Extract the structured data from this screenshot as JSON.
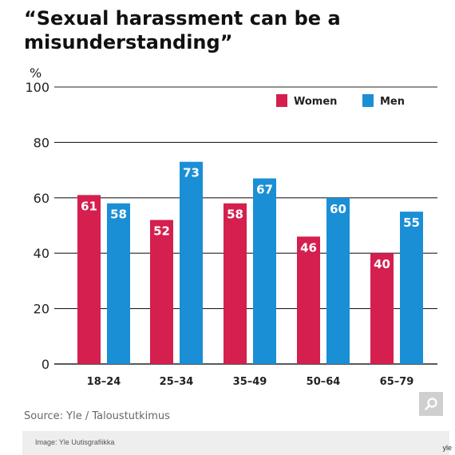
{
  "chart_data": {
    "type": "bar",
    "title": "“Sexual harassment can be a misunderstanding”",
    "ylabel": "%",
    "xlabel": "",
    "categories": [
      "18–24",
      "25–34",
      "35–49",
      "50–64",
      "65–79"
    ],
    "series": [
      {
        "name": "Women",
        "color": "#d41f4f",
        "values": [
          61,
          52,
          58,
          46,
          40
        ]
      },
      {
        "name": "Men",
        "color": "#1a8fd5",
        "values": [
          58,
          73,
          67,
          60,
          55
        ]
      }
    ],
    "ylim": [
      0,
      100
    ],
    "yticks": [
      0,
      20,
      40,
      60,
      80,
      100
    ],
    "grid": true,
    "legend_position": "top-right",
    "data_labels": true
  },
  "source": "Source: Yle / Taloustutkimus",
  "caption": "Image: Yle Uutisgrafiikka",
  "corner_text": "yle",
  "zoom_icon": "magnifier-icon"
}
